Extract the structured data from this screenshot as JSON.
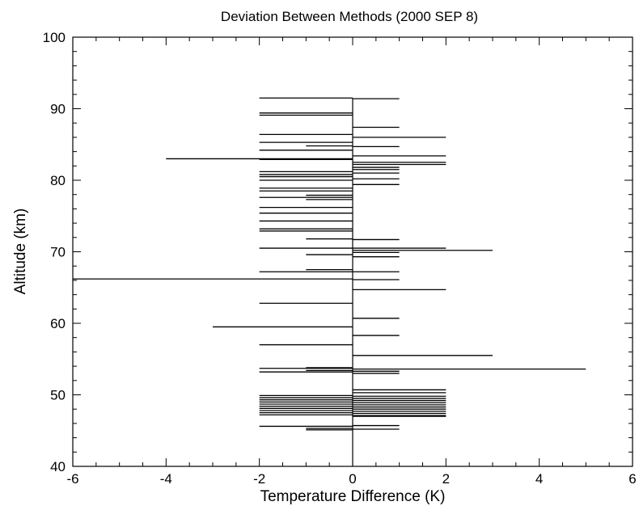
{
  "chart_data": {
    "type": "bar",
    "orientation": "horizontal",
    "title": "Deviation Between Methods (2000 SEP 8)",
    "xlabel": "Temperature Difference (K)",
    "ylabel": "Altitude (km)",
    "xlim": [
      -6,
      6
    ],
    "ylim": [
      40,
      100
    ],
    "xticks": [
      "-6",
      "-4",
      "-2",
      "0",
      "2",
      "4",
      "6"
    ],
    "yticks": [
      "40",
      "50",
      "60",
      "70",
      "80",
      "90",
      "100"
    ],
    "grid": false,
    "baseline": 0,
    "points": [
      {
        "y": 91.5,
        "x": -2
      },
      {
        "y": 91.4,
        "x": 1
      },
      {
        "y": 89.4,
        "x": -2
      },
      {
        "y": 89.1,
        "x": -2
      },
      {
        "y": 87.4,
        "x": 1
      },
      {
        "y": 86.4,
        "x": -2
      },
      {
        "y": 86.0,
        "x": 2
      },
      {
        "y": 85.3,
        "x": -2
      },
      {
        "y": 84.8,
        "x": -1
      },
      {
        "y": 84.7,
        "x": 1
      },
      {
        "y": 84.2,
        "x": -2
      },
      {
        "y": 83.4,
        "x": 2
      },
      {
        "y": 83.0,
        "x": -4
      },
      {
        "y": 82.9,
        "x": -2
      },
      {
        "y": 82.5,
        "x": 2
      },
      {
        "y": 82.2,
        "x": 2
      },
      {
        "y": 81.8,
        "x": 1
      },
      {
        "y": 81.5,
        "x": 1
      },
      {
        "y": 81.2,
        "x": -2
      },
      {
        "y": 81.0,
        "x": 1
      },
      {
        "y": 80.8,
        "x": -2
      },
      {
        "y": 80.5,
        "x": -2
      },
      {
        "y": 80.2,
        "x": 1
      },
      {
        "y": 80.0,
        "x": -2
      },
      {
        "y": 79.4,
        "x": 1
      },
      {
        "y": 78.9,
        "x": -2
      },
      {
        "y": 78.5,
        "x": -2
      },
      {
        "y": 77.9,
        "x": -1
      },
      {
        "y": 77.6,
        "x": -2
      },
      {
        "y": 77.3,
        "x": -1
      },
      {
        "y": 76.2,
        "x": -2
      },
      {
        "y": 75.4,
        "x": -2
      },
      {
        "y": 74.3,
        "x": -2
      },
      {
        "y": 73.2,
        "x": -2
      },
      {
        "y": 72.9,
        "x": -2
      },
      {
        "y": 71.8,
        "x": -1
      },
      {
        "y": 71.7,
        "x": 1
      },
      {
        "y": 70.5,
        "x": -2
      },
      {
        "y": 70.5,
        "x": 2
      },
      {
        "y": 70.2,
        "x": 3
      },
      {
        "y": 69.9,
        "x": 1
      },
      {
        "y": 69.6,
        "x": -1
      },
      {
        "y": 69.3,
        "x": 1
      },
      {
        "y": 67.5,
        "x": -1
      },
      {
        "y": 67.2,
        "x": -2
      },
      {
        "y": 67.2,
        "x": 1
      },
      {
        "y": 66.2,
        "x": -6
      },
      {
        "y": 66.1,
        "x": 1
      },
      {
        "y": 64.7,
        "x": 2
      },
      {
        "y": 62.8,
        "x": -2
      },
      {
        "y": 60.7,
        "x": 1
      },
      {
        "y": 59.5,
        "x": -3
      },
      {
        "y": 58.3,
        "x": 1
      },
      {
        "y": 57.0,
        "x": -2
      },
      {
        "y": 55.5,
        "x": 3
      },
      {
        "y": 53.8,
        "x": -1
      },
      {
        "y": 53.7,
        "x": -2
      },
      {
        "y": 53.6,
        "x": 5
      },
      {
        "y": 53.4,
        "x": -1
      },
      {
        "y": 53.2,
        "x": -2
      },
      {
        "y": 53.3,
        "x": 1
      },
      {
        "y": 53.0,
        "x": 1
      },
      {
        "y": 50.7,
        "x": 2
      },
      {
        "y": 50.3,
        "x": 2
      },
      {
        "y": 49.9,
        "x": -2
      },
      {
        "y": 49.8,
        "x": 2
      },
      {
        "y": 49.6,
        "x": -2
      },
      {
        "y": 49.5,
        "x": 2
      },
      {
        "y": 49.3,
        "x": -2
      },
      {
        "y": 49.2,
        "x": 2
      },
      {
        "y": 49.0,
        "x": -2
      },
      {
        "y": 48.9,
        "x": 2
      },
      {
        "y": 48.7,
        "x": -2
      },
      {
        "y": 48.6,
        "x": 2
      },
      {
        "y": 48.4,
        "x": -2
      },
      {
        "y": 48.3,
        "x": 2
      },
      {
        "y": 48.1,
        "x": -2
      },
      {
        "y": 48.0,
        "x": 2
      },
      {
        "y": 47.8,
        "x": -2
      },
      {
        "y": 47.7,
        "x": 2
      },
      {
        "y": 47.5,
        "x": -2
      },
      {
        "y": 47.4,
        "x": 2
      },
      {
        "y": 47.2,
        "x": -2
      },
      {
        "y": 47.1,
        "x": 2
      },
      {
        "y": 47.0,
        "x": 2
      },
      {
        "y": 45.7,
        "x": 1
      },
      {
        "y": 45.6,
        "x": -2
      },
      {
        "y": 45.3,
        "x": -1
      },
      {
        "y": 45.2,
        "x": 1
      },
      {
        "y": 45.1,
        "x": -1
      }
    ]
  }
}
